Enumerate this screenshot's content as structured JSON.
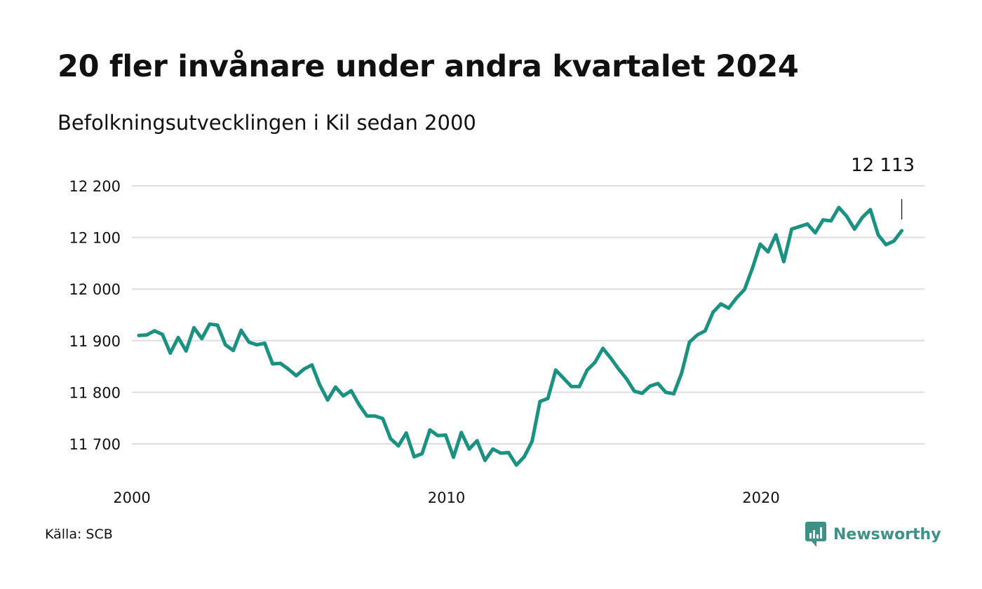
{
  "header": {
    "title": "20 fler invånare under andra kvartalet 2024",
    "subtitle": "Befolkningsutvecklingen i Kil sedan 2000"
  },
  "footer": {
    "source": "Källa: SCB",
    "brand": "Newsworthy"
  },
  "colors": {
    "line": "#1a9181",
    "grid": "#dddddd",
    "text": "#111111",
    "brand": "#3f9188"
  },
  "chart_data": {
    "type": "line",
    "title": "20 fler invånare under andra kvartalet 2024",
    "subtitle": "Befolkningsutvecklingen i Kil sedan 2000",
    "xlabel": "",
    "ylabel": "",
    "x_ticks": [
      "2000",
      "2010",
      "2020"
    ],
    "y_ticks": [
      {
        "value": 11700,
        "label": "11 700"
      },
      {
        "value": 11800,
        "label": "11 800"
      },
      {
        "value": 11900,
        "label": "11 900"
      },
      {
        "value": 12000,
        "label": "12 000"
      },
      {
        "value": 12100,
        "label": "12 100"
      },
      {
        "value": 12200,
        "label": "12 200"
      }
    ],
    "xlim": [
      "2000-Q1",
      "2024-Q2"
    ],
    "ylim": [
      11650,
      12200
    ],
    "grid": true,
    "annotation": {
      "x": "2024-Q2",
      "value": 12113,
      "label": "12 113"
    },
    "series": [
      {
        "start": "2000-Q1",
        "frequency": "quarterly",
        "values": [
          11910,
          11911,
          11919,
          11912,
          11876,
          11906,
          11880,
          11925,
          11904,
          11932,
          11930,
          11892,
          11881,
          11920,
          11897,
          11892,
          11895,
          11855,
          11856,
          11845,
          11832,
          11845,
          11853,
          11814,
          11785,
          11810,
          11793,
          11803,
          11776,
          11754,
          11754,
          11749,
          11710,
          11696,
          11721,
          11675,
          11681,
          11727,
          11716,
          11717,
          11674,
          11722,
          11690,
          11706,
          11668,
          11690,
          11682,
          11683,
          11659,
          11675,
          11705,
          11782,
          11788,
          11843,
          11827,
          11811,
          11811,
          11843,
          11858,
          11885,
          11866,
          11845,
          11826,
          11802,
          11798,
          11812,
          11817,
          11800,
          11797,
          11837,
          11897,
          11911,
          11919,
          11955,
          11971,
          11963,
          11983,
          11999,
          12040,
          12087,
          12072,
          12105,
          12053,
          12116,
          12121,
          12126,
          12109,
          12134,
          12132,
          12158,
          12141,
          12116,
          12139,
          12154,
          12105,
          12086,
          12093,
          12113
        ]
      }
    ]
  }
}
